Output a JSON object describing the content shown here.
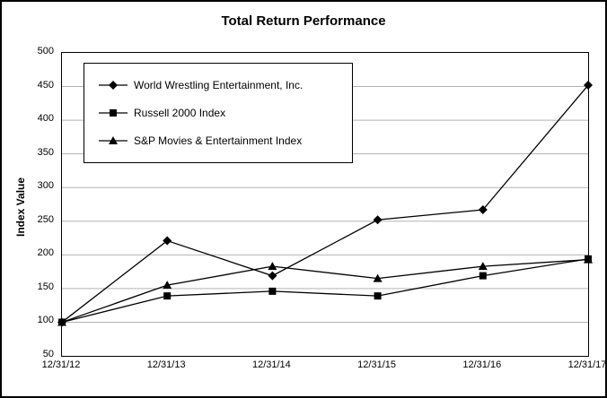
{
  "chart_data": {
    "type": "line",
    "title": "Total Return Performance",
    "ylabel": "Index Value",
    "x": [
      "12/31/12",
      "12/31/13",
      "12/31/14",
      "12/31/15",
      "12/31/16",
      "12/31/17"
    ],
    "series": [
      {
        "name": "World Wrestling Entertainment, Inc.",
        "marker": "diamond",
        "values": [
          100,
          221,
          169,
          252,
          267,
          452
        ]
      },
      {
        "name": "Russell 2000 Index",
        "marker": "square",
        "values": [
          100,
          139,
          146,
          139,
          169,
          194
        ]
      },
      {
        "name": "S&P Movies & Entertainment Index",
        "marker": "triangle",
        "values": [
          100,
          155,
          183,
          165,
          183,
          193
        ]
      }
    ],
    "ylim": [
      50,
      500
    ],
    "ytick_step": 50,
    "grid": "horizontal",
    "grid_color": "#b3b3b3",
    "line_color": "#000000",
    "marker_color": "#000000",
    "legend_position": "upper-left-inside",
    "background": "#ffffff"
  }
}
